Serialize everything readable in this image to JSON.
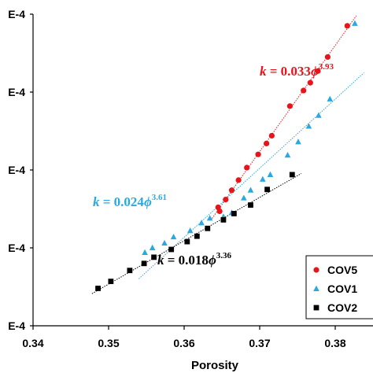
{
  "chart_data": {
    "type": "scatter",
    "xlabel": "Porosity",
    "ylabel": "",
    "xlim": [
      0.34,
      0.385
    ],
    "ylim": [
      0,
      4
    ],
    "x_ticks": [
      "0.34",
      "0.35",
      "0.36",
      "0.37",
      "0.38"
    ],
    "y_tick_labels": [
      "E-4",
      "E-4",
      "E-4",
      "E-4",
      "E-4"
    ],
    "legend_position": "bottom-right",
    "series": [
      {
        "name": "COV5",
        "color": "#e8141b",
        "marker": "circle",
        "fit_color": "#e8141b",
        "equation": {
          "prefix": "k",
          "eq": " = 0.033",
          "phi": "ϕ",
          "exp": "3.93"
        },
        "points": [
          [
            0.3645,
            1.52
          ],
          [
            0.3647,
            1.47
          ],
          [
            0.3655,
            1.62
          ],
          [
            0.3663,
            1.74
          ],
          [
            0.3672,
            1.87
          ],
          [
            0.3683,
            2.03
          ],
          [
            0.3698,
            2.2
          ],
          [
            0.3709,
            2.34
          ],
          [
            0.3716,
            2.44
          ],
          [
            0.374,
            2.82
          ],
          [
            0.3758,
            3.02
          ],
          [
            0.3767,
            3.12
          ],
          [
            0.3777,
            3.27
          ],
          [
            0.379,
            3.45
          ],
          [
            0.3816,
            3.85
          ]
        ]
      },
      {
        "name": "COV1",
        "color": "#29a9e0",
        "marker": "triangle",
        "fit_color": "#29a9e0",
        "equation": {
          "prefix": "k",
          "eq": " = 0.024",
          "phi": "ϕ",
          "exp": "3.61"
        },
        "points": [
          [
            0.3548,
            0.94
          ],
          [
            0.3558,
            1.0
          ],
          [
            0.3574,
            1.06
          ],
          [
            0.3586,
            1.14
          ],
          [
            0.3608,
            1.22
          ],
          [
            0.3623,
            1.32
          ],
          [
            0.3634,
            1.38
          ],
          [
            0.3652,
            1.4
          ],
          [
            0.3663,
            1.45
          ],
          [
            0.3679,
            1.64
          ],
          [
            0.3688,
            1.74
          ],
          [
            0.3704,
            1.88
          ],
          [
            0.3714,
            1.94
          ],
          [
            0.3737,
            2.19
          ],
          [
            0.3751,
            2.36
          ],
          [
            0.3765,
            2.56
          ],
          [
            0.3778,
            2.7
          ],
          [
            0.3793,
            2.91
          ],
          [
            0.3826,
            3.88
          ]
        ]
      },
      {
        "name": "COV2",
        "color": "#000000",
        "marker": "square",
        "fit_color": "#000000",
        "equation": {
          "prefix": "k",
          "eq": " = 0.018",
          "phi": "ϕ",
          "exp": "3.36"
        },
        "points": [
          [
            0.3486,
            0.48
          ],
          [
            0.3503,
            0.57
          ],
          [
            0.3528,
            0.71
          ],
          [
            0.3547,
            0.8
          ],
          [
            0.356,
            0.88
          ],
          [
            0.3583,
            0.98
          ],
          [
            0.3604,
            1.08
          ],
          [
            0.3617,
            1.15
          ],
          [
            0.3631,
            1.25
          ],
          [
            0.3652,
            1.36
          ],
          [
            0.3666,
            1.44
          ],
          [
            0.3688,
            1.55
          ],
          [
            0.371,
            1.75
          ],
          [
            0.3743,
            1.94
          ]
        ]
      }
    ]
  }
}
